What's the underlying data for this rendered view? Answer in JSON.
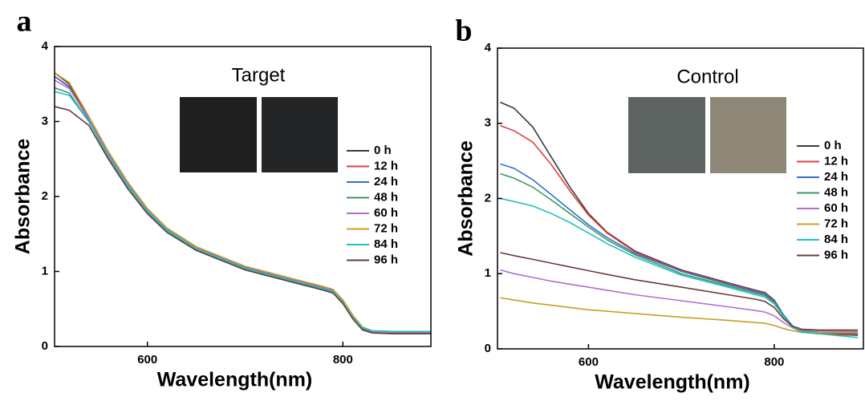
{
  "chart_data": [
    {
      "type": "line",
      "panel_label": "a",
      "inset_title": "Target",
      "xlabel": "Wavelength(nm)",
      "ylabel": "Absorbance",
      "xlim": [
        505,
        890
      ],
      "ylim": [
        0,
        4
      ],
      "xticks": [
        600,
        800
      ],
      "yticks": [
        0,
        1,
        2,
        3,
        4
      ],
      "legend": "right",
      "grid": false,
      "x": [
        505,
        520,
        540,
        560,
        580,
        600,
        620,
        650,
        700,
        750,
        780,
        790,
        800,
        810,
        820,
        830,
        850,
        890
      ],
      "series": [
        {
          "name": "0 h",
          "color": "#3a3a3a",
          "values": [
            3.65,
            3.5,
            3.05,
            2.58,
            2.17,
            1.82,
            1.56,
            1.31,
            1.05,
            0.88,
            0.78,
            0.74,
            0.6,
            0.4,
            0.25,
            0.2,
            0.18,
            0.18
          ]
        },
        {
          "name": "12 h",
          "color": "#e03c3c",
          "values": [
            3.6,
            3.47,
            3.03,
            2.56,
            2.16,
            1.81,
            1.55,
            1.3,
            1.04,
            0.87,
            0.77,
            0.73,
            0.59,
            0.39,
            0.24,
            0.19,
            0.17,
            0.17
          ]
        },
        {
          "name": "24 h",
          "color": "#2f6fcf",
          "values": [
            3.6,
            3.46,
            3.02,
            2.55,
            2.15,
            1.8,
            1.55,
            1.3,
            1.04,
            0.87,
            0.77,
            0.73,
            0.59,
            0.39,
            0.24,
            0.19,
            0.18,
            0.18
          ]
        },
        {
          "name": "48 h",
          "color": "#3a9a5a",
          "values": [
            3.45,
            3.38,
            3.0,
            2.53,
            2.13,
            1.79,
            1.54,
            1.29,
            1.03,
            0.86,
            0.76,
            0.72,
            0.58,
            0.38,
            0.23,
            0.19,
            0.18,
            0.18
          ]
        },
        {
          "name": "60 h",
          "color": "#b06fd0",
          "values": [
            3.55,
            3.44,
            3.04,
            2.57,
            2.17,
            1.82,
            1.57,
            1.32,
            1.06,
            0.89,
            0.79,
            0.75,
            0.61,
            0.41,
            0.25,
            0.2,
            0.19,
            0.19
          ]
        },
        {
          "name": "72 h",
          "color": "#c8a020",
          "values": [
            3.65,
            3.52,
            3.07,
            2.6,
            2.19,
            1.84,
            1.58,
            1.33,
            1.07,
            0.9,
            0.8,
            0.76,
            0.62,
            0.42,
            0.26,
            0.21,
            0.2,
            0.2
          ]
        },
        {
          "name": "84 h",
          "color": "#20c0c0",
          "values": [
            3.4,
            3.35,
            3.0,
            2.54,
            2.14,
            1.8,
            1.55,
            1.3,
            1.04,
            0.87,
            0.77,
            0.73,
            0.59,
            0.39,
            0.25,
            0.21,
            0.2,
            0.2
          ]
        },
        {
          "name": "96 h",
          "color": "#6b3b3b",
          "values": [
            3.2,
            3.15,
            2.95,
            2.5,
            2.1,
            1.77,
            1.52,
            1.28,
            1.02,
            0.85,
            0.75,
            0.71,
            0.57,
            0.37,
            0.22,
            0.18,
            0.17,
            0.17
          ]
        }
      ]
    },
    {
      "type": "line",
      "panel_label": "b",
      "inset_title": "Control",
      "xlabel": "Wavelength(nm)",
      "ylabel": "Absorbance",
      "xlim": [
        502,
        896
      ],
      "ylim": [
        0,
        4
      ],
      "xticks": [
        600,
        800
      ],
      "yticks": [
        0,
        1,
        2,
        3,
        4
      ],
      "legend": "right",
      "grid": false,
      "x": [
        505,
        520,
        540,
        560,
        580,
        600,
        620,
        650,
        700,
        750,
        780,
        790,
        800,
        810,
        820,
        830,
        850,
        890
      ],
      "series": [
        {
          "name": "0 h",
          "color": "#3a3a3a",
          "values": [
            3.28,
            3.2,
            2.95,
            2.55,
            2.15,
            1.8,
            1.55,
            1.3,
            1.05,
            0.88,
            0.78,
            0.75,
            0.65,
            0.45,
            0.3,
            0.22,
            0.2,
            0.18
          ]
        },
        {
          "name": "12 h",
          "color": "#e03c3c",
          "values": [
            2.97,
            2.9,
            2.75,
            2.45,
            2.1,
            1.78,
            1.54,
            1.29,
            1.04,
            0.87,
            0.77,
            0.74,
            0.64,
            0.44,
            0.29,
            0.22,
            0.2,
            0.19
          ]
        },
        {
          "name": "24 h",
          "color": "#2f6fcf",
          "values": [
            2.46,
            2.4,
            2.25,
            2.05,
            1.85,
            1.65,
            1.48,
            1.27,
            1.03,
            0.86,
            0.76,
            0.73,
            0.63,
            0.45,
            0.3,
            0.24,
            0.22,
            0.2
          ]
        },
        {
          "name": "48 h",
          "color": "#3a9a5a",
          "values": [
            2.33,
            2.27,
            2.15,
            1.98,
            1.8,
            1.62,
            1.45,
            1.25,
            1.0,
            0.84,
            0.74,
            0.71,
            0.62,
            0.44,
            0.3,
            0.24,
            0.22,
            0.21
          ]
        },
        {
          "name": "60 h",
          "color": "#b06fd0",
          "values": [
            1.05,
            1.0,
            0.95,
            0.9,
            0.86,
            0.82,
            0.78,
            0.72,
            0.64,
            0.56,
            0.51,
            0.49,
            0.44,
            0.35,
            0.28,
            0.25,
            0.24,
            0.23
          ]
        },
        {
          "name": "72 h",
          "color": "#c8a020",
          "values": [
            0.68,
            0.65,
            0.61,
            0.58,
            0.55,
            0.52,
            0.5,
            0.47,
            0.42,
            0.38,
            0.35,
            0.34,
            0.31,
            0.27,
            0.24,
            0.22,
            0.22,
            0.22
          ]
        },
        {
          "name": "84 h",
          "color": "#20c0c0",
          "values": [
            2.0,
            1.96,
            1.9,
            1.8,
            1.68,
            1.54,
            1.4,
            1.22,
            0.98,
            0.82,
            0.72,
            0.69,
            0.6,
            0.43,
            0.28,
            0.22,
            0.2,
            0.15
          ]
        },
        {
          "name": "96 h",
          "color": "#6b3b3b",
          "values": [
            1.28,
            1.24,
            1.19,
            1.14,
            1.09,
            1.04,
            0.99,
            0.92,
            0.82,
            0.72,
            0.66,
            0.63,
            0.55,
            0.4,
            0.3,
            0.26,
            0.25,
            0.25
          ]
        }
      ]
    }
  ]
}
